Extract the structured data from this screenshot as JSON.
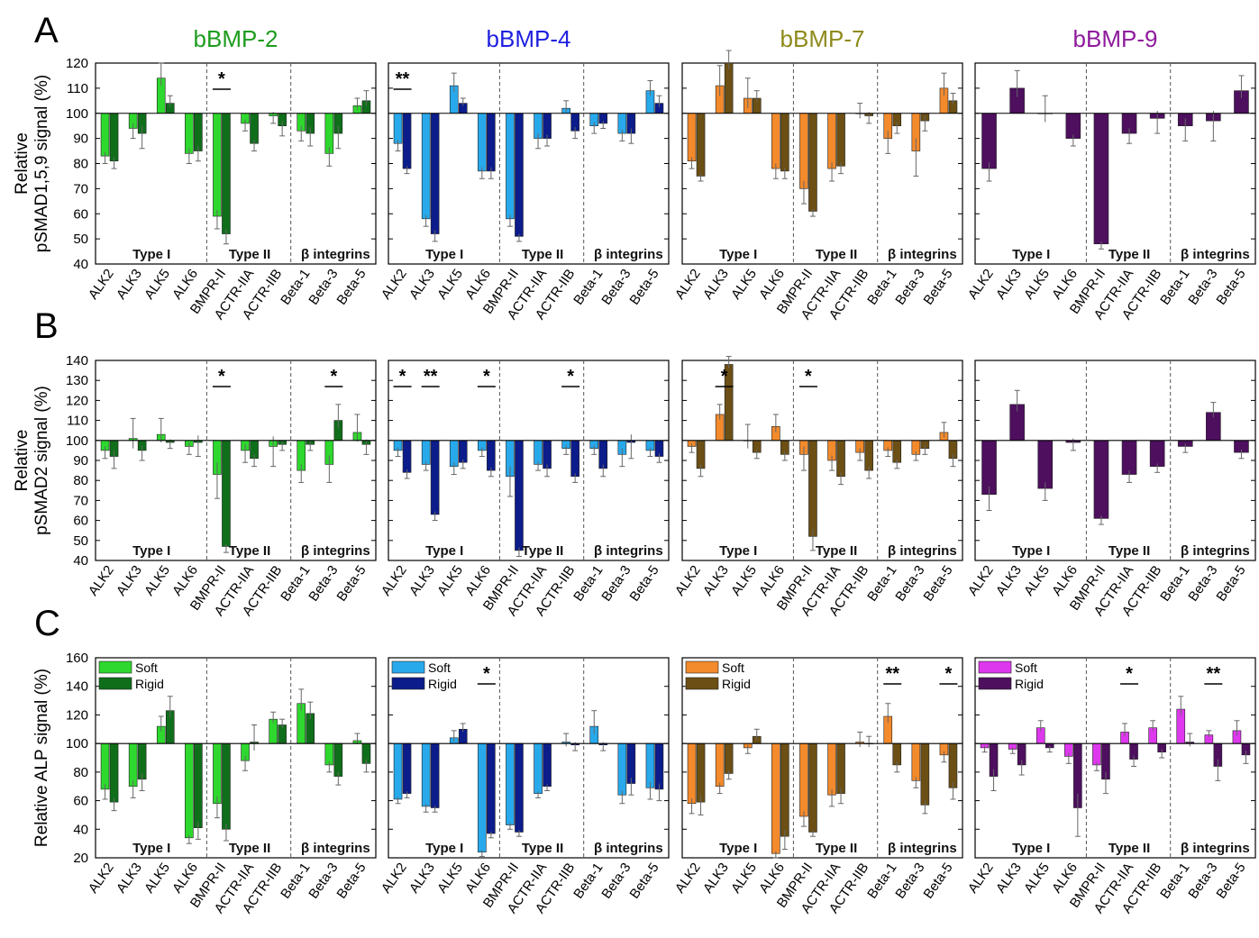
{
  "rows": [
    {
      "letter": "A",
      "ylabel": [
        "Relative",
        "pSMAD1,5,9 signal (%)"
      ],
      "ylim": [
        40,
        120
      ],
      "ticks": [
        40,
        50,
        60,
        70,
        80,
        90,
        100,
        110,
        120
      ],
      "baseline": 100
    },
    {
      "letter": "B",
      "ylabel": [
        "Relative",
        "pSMAD2 signal (%)"
      ],
      "ylim": [
        40,
        140
      ],
      "ticks": [
        40,
        50,
        60,
        70,
        80,
        90,
        100,
        110,
        120,
        130,
        140
      ],
      "baseline": 100
    },
    {
      "letter": "C",
      "ylabel": [
        "Relative ALP signal (%)"
      ],
      "ylim": [
        20,
        160
      ],
      "ticks": [
        20,
        40,
        60,
        80,
        100,
        120,
        140,
        160
      ],
      "baseline": 100
    }
  ],
  "columns": [
    {
      "title": "bBMP-2",
      "title_color": "#1e9c1e",
      "soft_color": "#2ed82e",
      "rigid_color": "#0f6e1a"
    },
    {
      "title": "bBMP-4",
      "title_color": "#1f1fe0",
      "soft_color": "#28a9ec",
      "rigid_color": "#0c1c8a"
    },
    {
      "title": "bBMP-7",
      "title_color": "#8e8a1c",
      "soft_color": "#f38a2b",
      "rigid_color": "#6b4f14"
    },
    {
      "title": "bBMP-9",
      "title_color": "#8e1a9c",
      "soft_color": "#de38ee",
      "rigid_color": "#4d0f5e"
    }
  ],
  "categories": [
    "ALK2",
    "ALK3",
    "ALK5",
    "ALK6",
    "BMPR-II",
    "ACTR-IIA",
    "ACTR-IIB",
    "Beta-1",
    "Beta-3",
    "Beta-5"
  ],
  "group_labels": [
    "Type I",
    "Type II",
    "β integrins"
  ],
  "legend": [
    "Soft",
    "Rigid"
  ],
  "chart_data": [
    {
      "type": "bar",
      "title": "bBMP-2",
      "ylabel": "Relative pSMAD1,5,9 signal (%)",
      "ylim": [
        40,
        120
      ],
      "categories": [
        "ALK2",
        "ALK3",
        "ALK5",
        "ALK6",
        "BMPR-II",
        "ACTR-IIA",
        "ACTR-IIB",
        "Beta-1",
        "Beta-3",
        "Beta-5"
      ],
      "series": [
        {
          "name": "Soft",
          "values": [
            83,
            94,
            114,
            84,
            59,
            96,
            99,
            93,
            84,
            103
          ],
          "errors": [
            3,
            4,
            6,
            4,
            5,
            3,
            3,
            4,
            5,
            3
          ]
        },
        {
          "name": "Rigid",
          "values": [
            81,
            92,
            104,
            85,
            52,
            88,
            95,
            92,
            92,
            105
          ],
          "errors": [
            3,
            6,
            3,
            4,
            4,
            3,
            4,
            5,
            6,
            4
          ]
        }
      ],
      "annotations": [
        {
          "text": "*",
          "category": "BMPR-II"
        }
      ]
    },
    {
      "type": "bar",
      "title": "bBMP-4",
      "ylabel": "Relative pSMAD1,5,9 signal (%)",
      "ylim": [
        40,
        120
      ],
      "categories": [
        "ALK2",
        "ALK3",
        "ALK5",
        "ALK6",
        "BMPR-II",
        "ACTR-IIA",
        "ACTR-IIB",
        "Beta-1",
        "Beta-3",
        "Beta-5"
      ],
      "series": [
        {
          "name": "Soft",
          "values": [
            88,
            58,
            111,
            77,
            58,
            90,
            102,
            95,
            92,
            109
          ],
          "errors": [
            3,
            3,
            5,
            3,
            3,
            4,
            3,
            3,
            3,
            4
          ]
        },
        {
          "name": "Rigid",
          "values": [
            78,
            52,
            104,
            77,
            51,
            90,
            93,
            96,
            92,
            104
          ],
          "errors": [
            2,
            3,
            2,
            3,
            2,
            3,
            3,
            2,
            4,
            3
          ]
        }
      ],
      "annotations": [
        {
          "text": "**",
          "category": "ALK2"
        }
      ]
    },
    {
      "type": "bar",
      "title": "bBMP-7",
      "ylabel": "Relative pSMAD1,5,9 signal (%)",
      "ylim": [
        40,
        120
      ],
      "categories": [
        "ALK2",
        "ALK3",
        "ALK5",
        "ALK6",
        "BMPR-II",
        "ACTR-IIA",
        "ACTR-IIB",
        "Beta-1",
        "Beta-3",
        "Beta-5"
      ],
      "series": [
        {
          "name": "Soft",
          "values": [
            81,
            111,
            106,
            78,
            70,
            78,
            100,
            90,
            85,
            110
          ],
          "errors": [
            3,
            8,
            8,
            4,
            6,
            5,
            4,
            6,
            10,
            6
          ]
        },
        {
          "name": "Rigid",
          "values": [
            75,
            120,
            106,
            77,
            61,
            79,
            99,
            95,
            97,
            105
          ],
          "errors": [
            2,
            5,
            3,
            3,
            2,
            3,
            3,
            3,
            4,
            3
          ]
        }
      ],
      "annotations": []
    },
    {
      "type": "bar",
      "title": "bBMP-9",
      "ylabel": "Relative pSMAD1,5,9 signal (%)",
      "ylim": [
        40,
        120
      ],
      "categories": [
        "ALK2",
        "ALK3",
        "ALK5",
        "ALK6",
        "BMPR-II",
        "ACTR-IIA",
        "ACTR-IIB",
        "Beta-1",
        "Beta-3",
        "Beta-5"
      ],
      "series": [
        {
          "name": "Rigid",
          "values": [
            78,
            110,
            100,
            90,
            48,
            92,
            98,
            95,
            97,
            109
          ],
          "errors": [
            5,
            7,
            7,
            3,
            2,
            4,
            6,
            6,
            8,
            6
          ]
        }
      ],
      "annotations": []
    },
    {
      "type": "bar",
      "title": "bBMP-2",
      "ylabel": "Relative pSMAD2 signal (%)",
      "ylim": [
        40,
        140
      ],
      "categories": [
        "ALK2",
        "ALK3",
        "ALK5",
        "ALK6",
        "BMPR-II",
        "ACTR-IIA",
        "ACTR-IIB",
        "Beta-1",
        "Beta-3",
        "Beta-5"
      ],
      "series": [
        {
          "name": "Soft",
          "values": [
            95,
            101,
            103,
            97,
            83,
            95,
            97,
            85,
            88,
            104
          ],
          "errors": [
            4,
            10,
            8,
            4,
            12,
            6,
            10,
            6,
            9,
            9
          ]
        },
        {
          "name": "Rigid",
          "values": [
            92,
            95,
            99,
            99,
            47,
            91,
            98,
            98,
            110,
            98
          ],
          "errors": [
            6,
            5,
            3,
            7,
            3,
            4,
            3,
            3,
            8,
            5
          ]
        }
      ],
      "annotations": [
        {
          "text": "*",
          "category": "BMPR-II"
        },
        {
          "text": "*",
          "category": "Beta-3"
        }
      ]
    },
    {
      "type": "bar",
      "title": "bBMP-4",
      "ylabel": "Relative pSMAD2 signal (%)",
      "ylim": [
        40,
        140
      ],
      "categories": [
        "ALK2",
        "ALK3",
        "ALK5",
        "ALK6",
        "BMPR-II",
        "ACTR-IIA",
        "ACTR-IIB",
        "Beta-1",
        "Beta-3",
        "Beta-5"
      ],
      "series": [
        {
          "name": "Soft",
          "values": [
            95,
            88,
            87,
            95,
            82,
            88,
            96,
            96,
            93,
            95
          ],
          "errors": [
            3,
            3,
            4,
            3,
            10,
            3,
            3,
            3,
            6,
            3
          ]
        },
        {
          "name": "Rigid",
          "values": [
            84,
            63,
            89,
            85,
            45,
            86,
            82,
            86,
            99,
            92
          ],
          "errors": [
            3,
            3,
            3,
            3,
            3,
            4,
            3,
            4,
            8,
            3
          ]
        }
      ],
      "annotations": [
        {
          "text": "*",
          "category": "ALK2"
        },
        {
          "text": "**",
          "category": "ALK3"
        },
        {
          "text": "*",
          "category": "ALK6"
        },
        {
          "text": "*",
          "category": "ACTR-IIB"
        }
      ]
    },
    {
      "type": "bar",
      "title": "bBMP-7",
      "ylabel": "Relative pSMAD2 signal (%)",
      "ylim": [
        40,
        140
      ],
      "categories": [
        "ALK2",
        "ALK3",
        "ALK5",
        "ALK6",
        "BMPR-II",
        "ACTR-IIA",
        "ACTR-IIB",
        "Beta-1",
        "Beta-3",
        "Beta-5"
      ],
      "series": [
        {
          "name": "Soft",
          "values": [
            97,
            113,
            100,
            107,
            93,
            90,
            94,
            95,
            93,
            104
          ],
          "errors": [
            3,
            5,
            8,
            6,
            8,
            5,
            4,
            3,
            3,
            5
          ]
        },
        {
          "name": "Rigid",
          "values": [
            86,
            138,
            94,
            93,
            52,
            82,
            85,
            89,
            96,
            91
          ],
          "errors": [
            4,
            4,
            3,
            3,
            7,
            4,
            4,
            3,
            3,
            4
          ]
        }
      ],
      "annotations": [
        {
          "text": "*",
          "category": "ALK3"
        },
        {
          "text": "*",
          "category": "BMPR-II"
        }
      ]
    },
    {
      "type": "bar",
      "title": "bBMP-9",
      "ylabel": "Relative pSMAD2 signal (%)",
      "ylim": [
        40,
        140
      ],
      "categories": [
        "ALK2",
        "ALK3",
        "ALK5",
        "ALK6",
        "BMPR-II",
        "ACTR-IIA",
        "ACTR-IIB",
        "Beta-1",
        "Beta-3",
        "Beta-5"
      ],
      "series": [
        {
          "name": "Rigid",
          "values": [
            73,
            118,
            76,
            99,
            61,
            83,
            87,
            97,
            114,
            94
          ],
          "errors": [
            8,
            7,
            6,
            4,
            3,
            4,
            3,
            3,
            5,
            3
          ]
        }
      ],
      "annotations": []
    },
    {
      "type": "bar",
      "title": "bBMP-2",
      "ylabel": "Relative ALP signal (%)",
      "ylim": [
        20,
        160
      ],
      "categories": [
        "ALK2",
        "ALK3",
        "ALK5",
        "ALK6",
        "BMPR-II",
        "ACTR-IIA",
        "ACTR-IIB",
        "Beta-1",
        "Beta-3",
        "Beta-5"
      ],
      "series": [
        {
          "name": "Soft",
          "values": [
            68,
            70,
            112,
            34,
            58,
            88,
            117,
            128,
            85,
            102
          ],
          "errors": [
            7,
            8,
            7,
            4,
            10,
            7,
            5,
            10,
            5,
            5
          ]
        },
        {
          "name": "Rigid",
          "values": [
            59,
            75,
            123,
            41,
            40,
            101,
            113,
            121,
            77,
            86
          ],
          "errors": [
            6,
            8,
            10,
            8,
            8,
            12,
            4,
            8,
            6,
            6
          ]
        }
      ],
      "annotations": [],
      "legend": [
        "Soft",
        "Rigid"
      ]
    },
    {
      "type": "bar",
      "title": "bBMP-4",
      "ylabel": "Relative ALP signal (%)",
      "ylim": [
        20,
        160
      ],
      "categories": [
        "ALK2",
        "ALK3",
        "ALK5",
        "ALK6",
        "BMPR-II",
        "ACTR-IIA",
        "ACTR-IIB",
        "Beta-1",
        "Beta-3",
        "Beta-5"
      ],
      "series": [
        {
          "name": "Soft",
          "values": [
            61,
            56,
            104,
            24,
            43,
            65,
            101,
            112,
            64,
            69
          ],
          "errors": [
            3,
            4,
            5,
            3,
            3,
            3,
            6,
            11,
            6,
            8
          ]
        },
        {
          "name": "Rigid",
          "values": [
            65,
            55,
            110,
            37,
            38,
            70,
            99,
            99,
            72,
            68
          ],
          "errors": [
            3,
            3,
            4,
            3,
            3,
            3,
            4,
            4,
            8,
            8
          ]
        }
      ],
      "annotations": [
        {
          "text": "*",
          "category": "ALK6"
        }
      ],
      "legend": [
        "Soft",
        "Rigid"
      ]
    },
    {
      "type": "bar",
      "title": "bBMP-7",
      "ylabel": "Relative ALP signal (%)",
      "ylim": [
        20,
        160
      ],
      "categories": [
        "ALK2",
        "ALK3",
        "ALK5",
        "ALK6",
        "BMPR-II",
        "ACTR-IIA",
        "ACTR-IIB",
        "Beta-1",
        "Beta-3",
        "Beta-5"
      ],
      "series": [
        {
          "name": "Soft",
          "values": [
            58,
            70,
            97,
            23,
            49,
            64,
            101,
            119,
            74,
            92
          ],
          "errors": [
            7,
            5,
            4,
            3,
            7,
            8,
            7,
            9,
            5,
            5
          ]
        },
        {
          "name": "Rigid",
          "values": [
            59,
            79,
            105,
            35,
            38,
            65,
            100,
            85,
            57,
            69
          ],
          "errors": [
            9,
            4,
            5,
            9,
            3,
            7,
            5,
            5,
            6,
            8
          ]
        }
      ],
      "annotations": [
        {
          "text": "**",
          "category": "Beta-1"
        },
        {
          "text": "*",
          "category": "Beta-5"
        }
      ],
      "legend": [
        "Soft",
        "Rigid"
      ]
    },
    {
      "type": "bar",
      "title": "bBMP-9",
      "ylabel": "Relative ALP signal (%)",
      "ylim": [
        20,
        160
      ],
      "categories": [
        "ALK2",
        "ALK3",
        "ALK5",
        "ALK6",
        "BMPR-II",
        "ACTR-IIA",
        "ACTR-IIB",
        "Beta-1",
        "Beta-3",
        "Beta-5"
      ],
      "series": [
        {
          "name": "Soft",
          "values": [
            97,
            96,
            111,
            91,
            85,
            108,
            111,
            124,
            106,
            109
          ],
          "errors": [
            3,
            3,
            5,
            5,
            4,
            6,
            5,
            9,
            3,
            7
          ]
        },
        {
          "name": "Rigid",
          "values": [
            77,
            85,
            97,
            55,
            75,
            89,
            94,
            101,
            84,
            92
          ],
          "errors": [
            10,
            7,
            3,
            20,
            10,
            5,
            4,
            6,
            10,
            6
          ]
        }
      ],
      "annotations": [
        {
          "text": "*",
          "category": "ACTR-IIA"
        },
        {
          "text": "**",
          "category": "Beta-3"
        }
      ],
      "legend": [
        "Soft",
        "Rigid"
      ]
    }
  ]
}
